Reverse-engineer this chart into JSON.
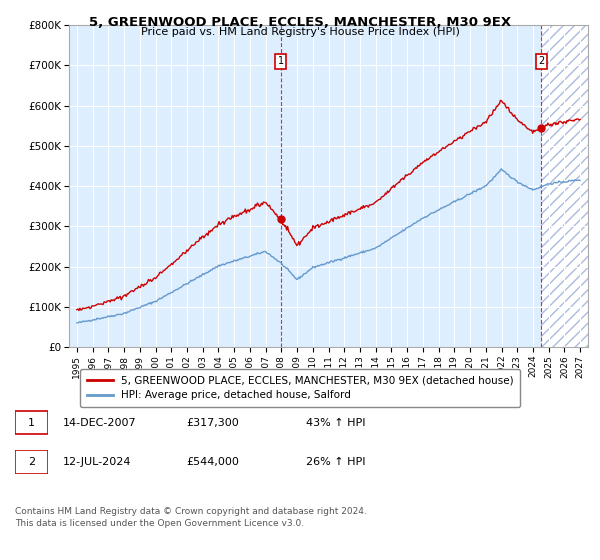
{
  "title": "5, GREENWOOD PLACE, ECCLES, MANCHESTER, M30 9EX",
  "subtitle": "Price paid vs. HM Land Registry's House Price Index (HPI)",
  "legend_line1": "5, GREENWOOD PLACE, ECCLES, MANCHESTER, M30 9EX (detached house)",
  "legend_line2": "HPI: Average price, detached house, Salford",
  "annotation1_num": "1",
  "annotation1_date": "14-DEC-2007",
  "annotation1_price": "£317,300",
  "annotation1_hpi": "43% ↑ HPI",
  "annotation2_num": "2",
  "annotation2_date": "12-JUL-2024",
  "annotation2_price": "£544,000",
  "annotation2_hpi": "26% ↑ HPI",
  "copyright": "Contains HM Land Registry data © Crown copyright and database right 2024.\nThis data is licensed under the Open Government Licence v3.0.",
  "red_color": "#cc0000",
  "blue_color": "#6699cc",
  "bg_color": "#ddeeff",
  "hatch_color": "#aabbdd",
  "ylim": [
    0,
    800000
  ],
  "yticks": [
    0,
    100000,
    200000,
    300000,
    400000,
    500000,
    600000,
    700000,
    800000
  ],
  "sale1_x": 2007.95,
  "sale1_y": 317300,
  "sale2_x": 2024.54,
  "sale2_y": 544000,
  "hatch_start": 2024.54,
  "xmin": 1994.5,
  "xmax": 2027.5
}
